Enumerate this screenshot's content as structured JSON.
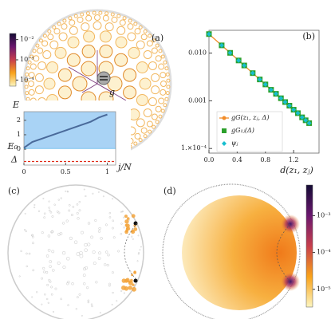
{
  "chart_data": [
    {
      "type": "network",
      "panel_label": "(a)",
      "node_label": "g",
      "clim": [
        5e-05,
        0.02
      ],
      "cticks": [
        {
          "value": 0.01,
          "label": "10⁻²"
        },
        {
          "value": 0.001,
          "label": "10⁻³"
        },
        {
          "value": 0.0001,
          "label": "10⁻⁴"
        }
      ]
    },
    {
      "type": "line",
      "ylabel": "E",
      "xlabel": "j/N",
      "x": [
        0,
        0.1,
        0.2,
        0.3,
        0.4,
        0.5,
        0.6,
        0.7,
        0.8,
        0.9,
        1
      ],
      "values": [
        0.1,
        0.5,
        0.7,
        0.9,
        1.1,
        1.3,
        1.5,
        1.7,
        1.9,
        2.2,
        2.4
      ],
      "color": "#4a6a9a",
      "band_color": "#a9d3f5",
      "xlim": [
        0,
        1.1
      ],
      "ylim": [
        -1.1,
        2.6
      ],
      "xticks": [
        0,
        0.5,
        1
      ],
      "yticks": [
        0,
        1,
        2
      ],
      "annotations": [
        {
          "label": "E₀",
          "value": 0.05,
          "color": "#1e9be0"
        },
        {
          "label": "Δ",
          "value": -0.85,
          "color": "#e0301e"
        }
      ]
    },
    {
      "type": "scatter",
      "panel_label": "(b)",
      "xlabel": "d(z₁, zⱼ)",
      "x": [
        0,
        0.18,
        0.3,
        0.42,
        0.5,
        0.62,
        0.72,
        0.8,
        0.88,
        0.95,
        1.02,
        1.08,
        1.14,
        1.2,
        1.26,
        1.32,
        1.37,
        1.42
      ],
      "series": [
        {
          "name": "gG(z₁, zⱼ, Δ)",
          "color": "#f28c28",
          "marker": "line-circle",
          "values": [
            0.025,
            0.0145,
            0.0101,
            0.007,
            0.0055,
            0.0038,
            0.0028,
            0.0022,
            0.0017,
            0.0014,
            0.00113,
            0.00094,
            0.00079,
            0.00065,
            0.00055,
            0.00045,
            0.00039,
            0.00034
          ]
        },
        {
          "name": "gG₁ⱼ(Δ)",
          "color": "#2ca02c",
          "marker": "square",
          "values": [
            0.025,
            0.0145,
            0.0101,
            0.007,
            0.0055,
            0.0038,
            0.0028,
            0.0022,
            0.0017,
            0.0014,
            0.00113,
            0.00094,
            0.00079,
            0.00065,
            0.00055,
            0.00045,
            0.00039,
            0.00034
          ]
        },
        {
          "name": "ψⱼ",
          "color": "#17becf",
          "marker": "diamond",
          "values": [
            0.025,
            0.0145,
            0.0101,
            0.007,
            0.0055,
            0.0038,
            0.0028,
            0.0022,
            0.0017,
            0.0014,
            0.00113,
            0.00094,
            0.00079,
            0.00065,
            0.00055,
            0.00045,
            0.00039,
            0.00034
          ]
        }
      ],
      "xlim": [
        0,
        1.56
      ],
      "ylim": [
        8e-05,
        0.03
      ],
      "log_y": true,
      "xticks": [
        {
          "value": 0,
          "label": "0.0"
        },
        0.4,
        0.8,
        1.2
      ],
      "yticks": [
        {
          "value": 0.01,
          "label": "0.010"
        },
        0.001,
        {
          "value": 0.0001,
          "label": "1.×10⁻⁴"
        }
      ],
      "legend": "lower left"
    },
    {
      "type": "disk",
      "panel_label": "(c)"
    },
    {
      "type": "heatmap",
      "panel_label": "(d)",
      "clim": [
        3.3e-06,
        0.0068
      ],
      "cticks": [
        {
          "value": 0.001,
          "label": "10⁻³"
        },
        {
          "value": 0.0001,
          "label": "10⁻⁴"
        },
        {
          "value": 1e-05,
          "label": "10⁻⁵"
        }
      ]
    }
  ]
}
